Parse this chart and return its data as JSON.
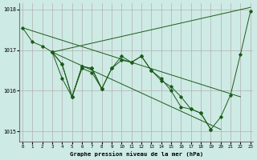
{
  "xlabel": "Graphe pression niveau de la mer (hPa)",
  "background_color": "#ceeae4",
  "grid_color": "#b0b0b0",
  "line_color": "#1a5c1a",
  "ylim": [
    1014.75,
    1018.15
  ],
  "xlim": [
    -0.3,
    23.3
  ],
  "yticks": [
    1015,
    1016,
    1017,
    1018
  ],
  "xticks": [
    0,
    1,
    2,
    3,
    4,
    5,
    6,
    7,
    8,
    9,
    10,
    11,
    12,
    13,
    14,
    15,
    16,
    17,
    18,
    19,
    20,
    21,
    22,
    23
  ],
  "series1": [
    1017.55,
    1017.2,
    1017.1,
    1016.95,
    1016.65,
    1015.85,
    1016.6,
    1016.55,
    1016.05,
    1016.55,
    1016.75,
    1016.7,
    1016.85,
    1016.5,
    1016.25,
    1016.1,
    1015.85,
    1015.55,
    1015.45,
    1015.05,
    1015.35,
    1015.9,
    1016.9,
    1017.95
  ],
  "series2": [
    null,
    null,
    null,
    1016.95,
    1016.65,
    1015.85,
    1016.6,
    1016.55,
    1016.05,
    1016.55,
    1016.85,
    1016.7,
    1016.85,
    1016.5,
    1016.3,
    1016.0,
    1015.6,
    1015.55,
    1015.45,
    1015.05,
    null,
    null,
    null,
    null
  ],
  "series3": [
    null,
    null,
    null,
    1016.95,
    1016.3,
    1015.85,
    1016.55,
    1016.45,
    1016.05,
    null,
    null,
    null,
    null,
    null,
    null,
    null,
    null,
    null,
    null,
    null,
    null,
    null,
    null,
    null
  ],
  "diag_rise": {
    "x": [
      3,
      23
    ],
    "y": [
      1016.95,
      1018.05
    ]
  },
  "diag_fall": {
    "x": [
      3,
      20
    ],
    "y": [
      1016.95,
      1015.05
    ]
  },
  "diag_fall2": {
    "x": [
      0,
      22
    ],
    "y": [
      1017.55,
      1015.85
    ]
  }
}
